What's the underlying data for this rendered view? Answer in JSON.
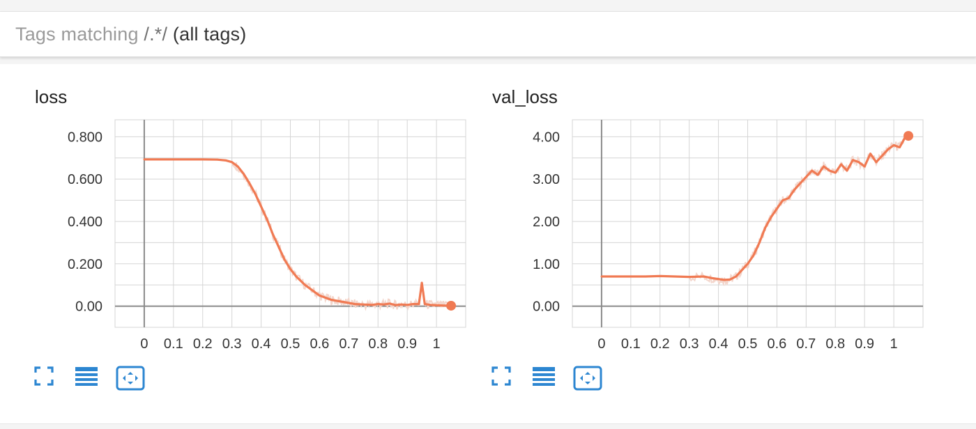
{
  "header": {
    "prefix": "Tags matching ",
    "pattern": "/.*/",
    "note": " (all tags)"
  },
  "colors": {
    "series": "#f07a53",
    "raw": "#f3d5cb",
    "icon": "#2c86d1",
    "grid": "#d5d5d5",
    "axis": "#8a8a8a"
  },
  "chart_data": [
    {
      "type": "line",
      "title": "loss",
      "xlim": [
        -0.1,
        1.1
      ],
      "ylim": [
        -0.1,
        0.88
      ],
      "xticks": [
        "0",
        "0.1",
        "0.2",
        "0.3",
        "0.4",
        "0.5",
        "0.6",
        "0.7",
        "0.8",
        "0.9",
        "1"
      ],
      "yticks": [
        "0.00",
        "0.200",
        "0.400",
        "0.600",
        "0.800"
      ],
      "grid": true,
      "series": [
        {
          "x": [
            0,
            0.05,
            0.1,
            0.15,
            0.2,
            0.25,
            0.28,
            0.3,
            0.32,
            0.34,
            0.36,
            0.38,
            0.4,
            0.42,
            0.44,
            0.46,
            0.48,
            0.5,
            0.52,
            0.55,
            0.58,
            0.6,
            0.62,
            0.64,
            0.66,
            0.68,
            0.7,
            0.72,
            0.75,
            0.78,
            0.8,
            0.82,
            0.84,
            0.86,
            0.88,
            0.9,
            0.92,
            0.94,
            0.95,
            0.96,
            0.98,
            1.0,
            1.02,
            1.05
          ],
          "y": [
            0.693,
            0.693,
            0.693,
            0.693,
            0.693,
            0.692,
            0.688,
            0.68,
            0.66,
            0.625,
            0.58,
            0.53,
            0.47,
            0.41,
            0.34,
            0.28,
            0.22,
            0.175,
            0.14,
            0.1,
            0.07,
            0.05,
            0.04,
            0.03,
            0.025,
            0.02,
            0.015,
            0.01,
            0.008,
            0.006,
            0.01,
            0.008,
            0.012,
            0.005,
            0.008,
            0.006,
            0.01,
            0.01,
            0.11,
            0.01,
            0.006,
            0.004,
            0.003,
            0.002
          ]
        }
      ]
    },
    {
      "type": "line",
      "title": "val_loss",
      "xlim": [
        -0.1,
        1.1
      ],
      "ylim": [
        -0.5,
        4.4
      ],
      "xticks": [
        "0",
        "0.1",
        "0.2",
        "0.3",
        "0.4",
        "0.5",
        "0.6",
        "0.7",
        "0.8",
        "0.9",
        "1"
      ],
      "yticks": [
        "0.00",
        "1.00",
        "2.00",
        "3.00",
        "4.00"
      ],
      "grid": true,
      "series": [
        {
          "x": [
            0,
            0.05,
            0.1,
            0.15,
            0.2,
            0.25,
            0.3,
            0.35,
            0.38,
            0.4,
            0.42,
            0.44,
            0.46,
            0.48,
            0.5,
            0.52,
            0.54,
            0.56,
            0.58,
            0.6,
            0.62,
            0.64,
            0.66,
            0.68,
            0.7,
            0.72,
            0.74,
            0.76,
            0.78,
            0.8,
            0.82,
            0.84,
            0.86,
            0.88,
            0.9,
            0.92,
            0.94,
            0.96,
            0.98,
            1.0,
            1.02,
            1.04,
            1.05
          ],
          "y": [
            0.7,
            0.7,
            0.7,
            0.7,
            0.71,
            0.7,
            0.69,
            0.7,
            0.66,
            0.64,
            0.62,
            0.63,
            0.7,
            0.85,
            1.0,
            1.2,
            1.5,
            1.85,
            2.1,
            2.3,
            2.5,
            2.55,
            2.75,
            2.9,
            3.05,
            3.2,
            3.1,
            3.3,
            3.2,
            3.15,
            3.35,
            3.2,
            3.45,
            3.4,
            3.3,
            3.6,
            3.4,
            3.55,
            3.7,
            3.8,
            3.75,
            4.0,
            4.02
          ]
        }
      ]
    }
  ]
}
